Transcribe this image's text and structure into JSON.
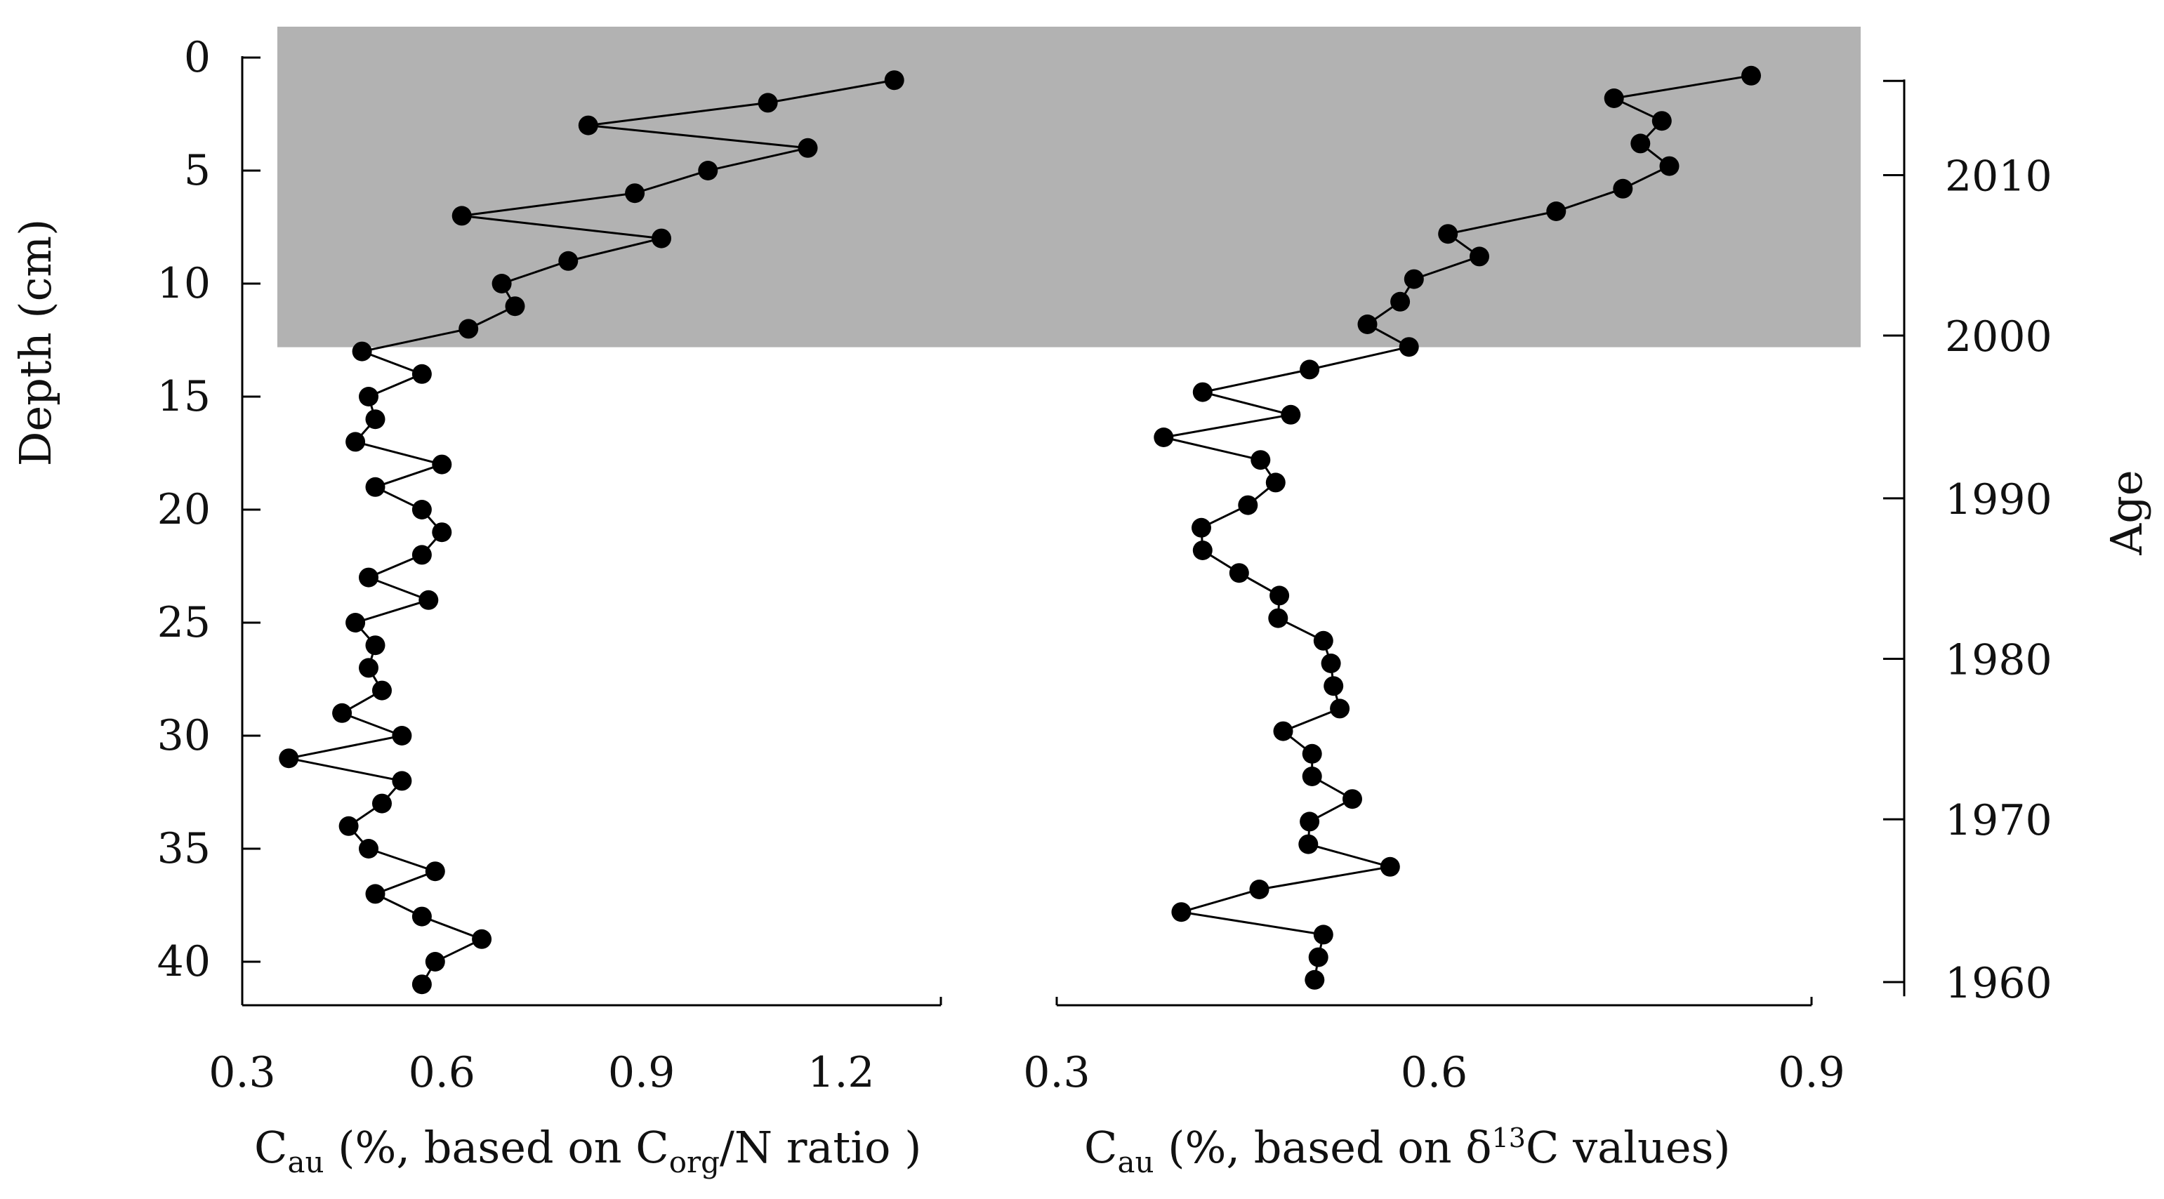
{
  "chart_data": {
    "type": "line",
    "shared_y": {
      "label": "Depth (cm)",
      "range": [
        0,
        42
      ],
      "inverted": true,
      "ticks": [
        0,
        5,
        10,
        15,
        20,
        25,
        30,
        35,
        40
      ],
      "tick_labels": [
        "0",
        "5",
        "10",
        "15",
        "20",
        "25",
        "30",
        "35",
        "40"
      ]
    },
    "age_axis": {
      "label": "Age",
      "ticks": [
        2010,
        2000,
        1990,
        1980,
        1970,
        1960
      ],
      "tick_labels": [
        "2010",
        "2000",
        "1990",
        "1980",
        "1970",
        "1960"
      ],
      "tick_depths_cm": [
        5.2,
        12.3,
        19.5,
        26.6,
        33.7,
        40.9
      ],
      "range_depth_cm": [
        1,
        41
      ]
    },
    "shaded_region": {
      "depth_from_cm": 0,
      "depth_to_cm": 13,
      "color": "#b2b2b2"
    },
    "panels": [
      {
        "name": "corg-n",
        "xlabel": {
          "main": "C",
          "sub": "au",
          "mid": " (%, based on C",
          "sub2": "org",
          "tail": "/N ratio )"
        },
        "xlim": [
          0.3,
          1.35
        ],
        "xticks": [
          0.3,
          0.6,
          0.9,
          1.2
        ],
        "xtick_labels": [
          "0.3",
          "0.6",
          "0.9",
          "1.2"
        ],
        "series": [
          {
            "name": "C_au (Corg/N)",
            "depth_cm": [
              1,
              2,
              3,
              4,
              5,
              6,
              7,
              8,
              9,
              10,
              11,
              12,
              13,
              14,
              15,
              16,
              17,
              18,
              19,
              20,
              21,
              22,
              23,
              24,
              25,
              26,
              27,
              28,
              29,
              30,
              31,
              32,
              33,
              34,
              35,
              36,
              37,
              38,
              39,
              40,
              41
            ],
            "x": [
              1.28,
              1.09,
              0.82,
              1.15,
              1.0,
              0.89,
              0.63,
              0.93,
              0.79,
              0.69,
              0.71,
              0.64,
              0.48,
              0.57,
              0.49,
              0.5,
              0.47,
              0.6,
              0.5,
              0.57,
              0.6,
              0.57,
              0.49,
              0.58,
              0.47,
              0.5,
              0.49,
              0.51,
              0.45,
              0.54,
              0.37,
              0.54,
              0.51,
              0.46,
              0.49,
              0.59,
              0.5,
              0.57,
              0.66,
              0.59,
              0.57
            ]
          }
        ]
      },
      {
        "name": "d13c",
        "xlabel": {
          "main": "C",
          "sub": "au",
          "mid": " (%, based on δ",
          "sup": "13",
          "tail": "C values)"
        },
        "xlim": [
          0.3,
          0.9
        ],
        "xticks": [
          0.3,
          0.6,
          0.9
        ],
        "xtick_labels": [
          "0.3",
          "0.6",
          "0.9"
        ],
        "series": [
          {
            "name": "C_au (δ13C)",
            "depth_cm": [
              0.8,
              1.8,
              2.8,
              3.8,
              4.8,
              5.8,
              6.8,
              7.8,
              8.8,
              9.8,
              10.8,
              11.8,
              12.8,
              13.8,
              14.8,
              15.8,
              16.8,
              17.8,
              18.8,
              19.8,
              20.8,
              21.8,
              22.8,
              23.8,
              24.8,
              25.8,
              26.8,
              27.8,
              28.8,
              29.8,
              30.8,
              31.8,
              32.8,
              33.8,
              34.8,
              35.8,
              36.8,
              37.8,
              38.8,
              39.8,
              40.8
            ],
            "x": [
              0.852,
              0.743,
              0.781,
              0.764,
              0.787,
              0.75,
              0.697,
              0.611,
              0.636,
              0.584,
              0.573,
              0.547,
              0.58,
              0.501,
              0.416,
              0.486,
              0.385,
              0.462,
              0.474,
              0.452,
              0.415,
              0.416,
              0.445,
              0.477,
              0.476,
              0.512,
              0.518,
              0.52,
              0.525,
              0.48,
              0.503,
              0.503,
              0.535,
              0.501,
              0.5,
              0.565,
              0.461,
              0.399,
              0.512,
              0.508,
              0.505
            ]
          }
        ]
      }
    ]
  }
}
